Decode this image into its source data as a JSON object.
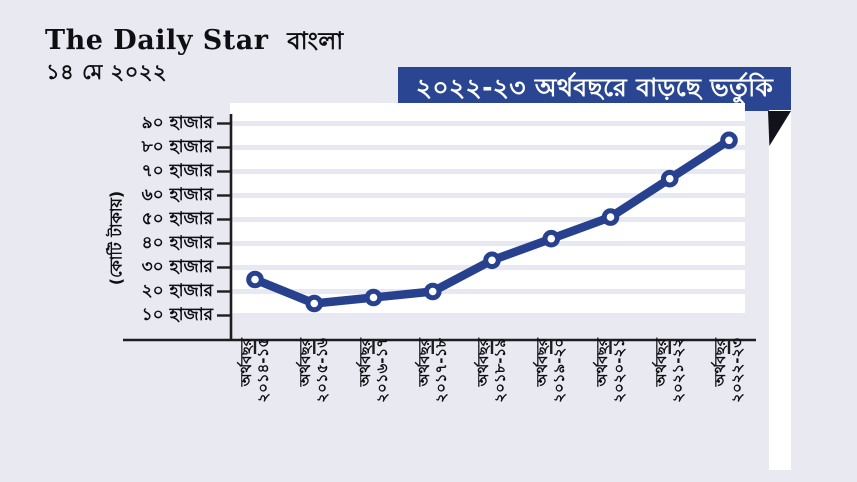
{
  "page": {
    "background": "#e9e9f2",
    "accent_blue": "#2a4591",
    "fold_color": "#12121a"
  },
  "header": {
    "logo_english": "The Daily Star",
    "logo_bangla": "বাংলা",
    "date": "১৪ মে ২০২২"
  },
  "banner": {
    "title": "২০২২-২৩ অর্থবছরে বাড়ছে ভর্তুকি",
    "background": "#2a4591",
    "text_color": "#ffffff"
  },
  "chart_data": {
    "type": "line",
    "title": "২০২২-২৩ অর্থবছরে বাড়ছে ভর্তুকি",
    "ylabel": "(কোটি টাকায়)",
    "x_prefix": "অর্থবছর",
    "categories": [
      "২০১৪-১৫",
      "২০১৫-১৬",
      "২০১৬-১৭",
      "২০১৭-১৮",
      "২০১৮-১৯",
      "২০১৯-২০",
      "২০২০-২১",
      "২০২১-২২",
      "২০২২-২৩"
    ],
    "values": [
      25,
      15,
      17.5,
      20,
      33,
      42,
      51,
      67,
      83
    ],
    "values_unit": "হাজার কোটি টাকা (thousand crore taka, read from gridlines)",
    "y_ticks": [
      {
        "value": 90,
        "label": "৯০ হাজার"
      },
      {
        "value": 80,
        "label": "৮০ হাজার"
      },
      {
        "value": 70,
        "label": "৭০ হাজার"
      },
      {
        "value": 60,
        "label": "৬০ হাজার"
      },
      {
        "value": 50,
        "label": "৫০ হাজার"
      },
      {
        "value": 40,
        "label": "৪০ হাজার"
      },
      {
        "value": 30,
        "label": "৩০ হাজার"
      },
      {
        "value": 20,
        "label": "২০ হাজার"
      },
      {
        "value": 10,
        "label": "১০ হাজার"
      }
    ],
    "ylim": [
      0,
      95
    ],
    "grid": "horizontal-bands",
    "legend": "none",
    "line_color": "#27418f",
    "marker": "open-circle",
    "panel_background": "#ffffff",
    "band_color": "#e8e8f3",
    "axis_color": "#1e1e1e"
  }
}
